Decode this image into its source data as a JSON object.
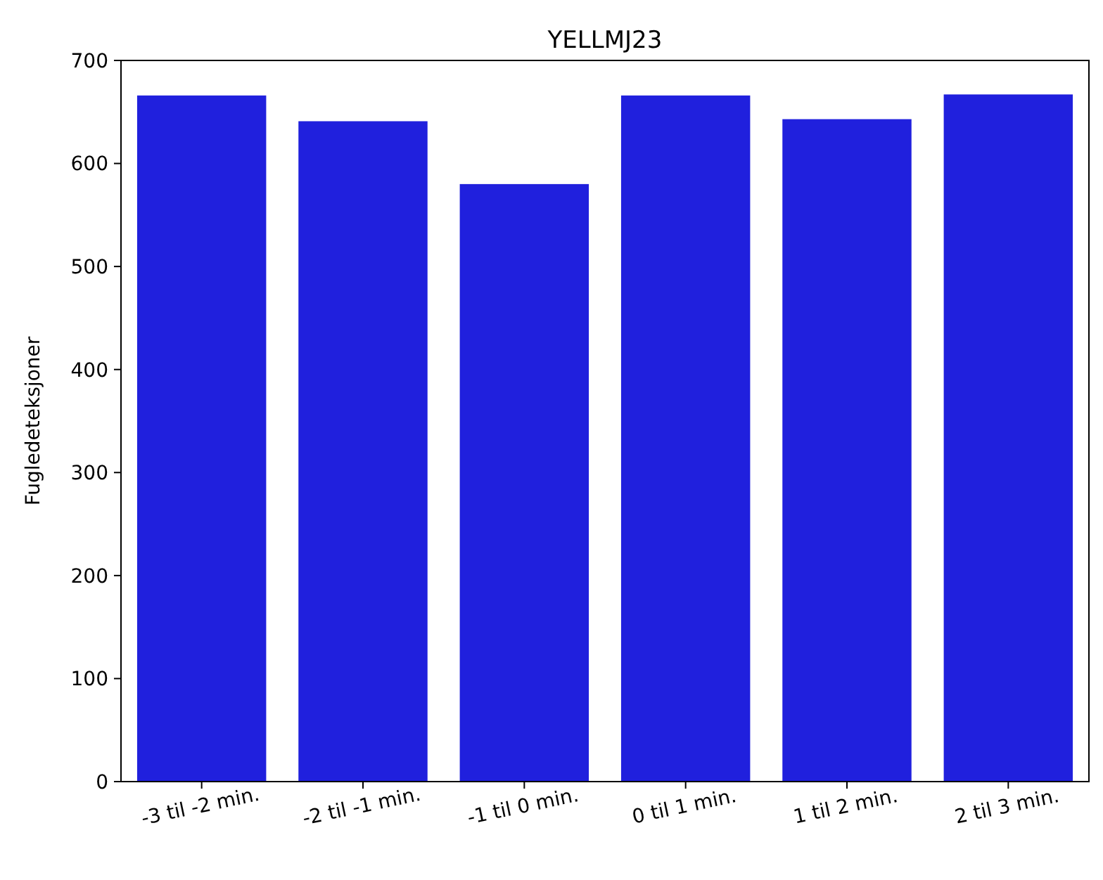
{
  "chart_data": {
    "type": "bar",
    "title": "YELLMJ23",
    "ylabel": "Fugledeteksjoner",
    "categories": [
      "-3 til -2 min.",
      "-2 til -1 min.",
      "-1 til 0 min.",
      "0 til 1 min.",
      "1 til 2 min.",
      "2 til 3 min."
    ],
    "values": [
      666,
      641,
      580,
      666,
      643,
      667
    ],
    "color": "#2020dd",
    "ylim": [
      0,
      700
    ],
    "yticks": [
      0,
      100,
      200,
      300,
      400,
      500,
      600,
      700
    ],
    "grid": false
  }
}
